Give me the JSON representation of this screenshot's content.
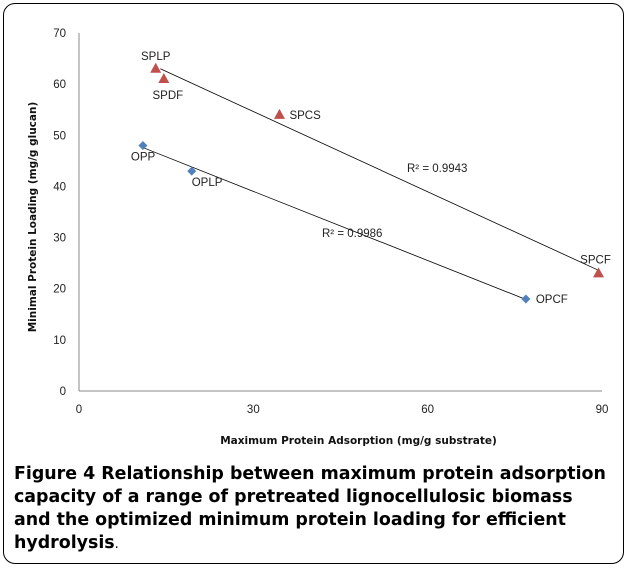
{
  "chart_data": {
    "type": "scatter",
    "xlabel": "Maximum Protein Adsorption (mg/g substrate)",
    "ylabel": "Minimal Protein Loading (mg/g glucan)",
    "xlim": [
      0,
      90
    ],
    "ylim": [
      0,
      70
    ],
    "x_ticks": [
      0,
      30,
      60,
      90
    ],
    "y_ticks": [
      0,
      10,
      20,
      30,
      40,
      50,
      60,
      70
    ],
    "grid": false,
    "legend": "none",
    "series": [
      {
        "marker": "triangle",
        "color": "#c0504d",
        "points": [
          {
            "label": "SPLP",
            "x": 13.2,
            "y": 63
          },
          {
            "label": "SPDF",
            "x": 14.6,
            "y": 61
          },
          {
            "label": "SPCS",
            "x": 34.5,
            "y": 54
          },
          {
            "label": "SPCF",
            "x": 89.4,
            "y": 23
          }
        ],
        "trendline": {
          "from": [
            14.0,
            63.0
          ],
          "to": [
            89.4,
            23.6
          ],
          "r2_text": "R² = 0.9943"
        }
      },
      {
        "marker": "diamond",
        "color": "#4f81bd",
        "points": [
          {
            "label": "OPP",
            "x": 11.0,
            "y": 48
          },
          {
            "label": "OPLP",
            "x": 19.4,
            "y": 43
          },
          {
            "label": "OPCF",
            "x": 76.9,
            "y": 18
          }
        ],
        "trendline": {
          "from": [
            11.0,
            47.6
          ],
          "to": [
            76.9,
            17.9
          ],
          "r2_text": "R² = 0.9986"
        }
      }
    ]
  },
  "caption": {
    "figure_label": "Figure 4",
    "text": " Relationship between maximum protein adsorption capacity of a range of pretreated lignocellulosic biomass and the optimized minimum protein loading for efficient hydrolysis",
    "end": "."
  }
}
